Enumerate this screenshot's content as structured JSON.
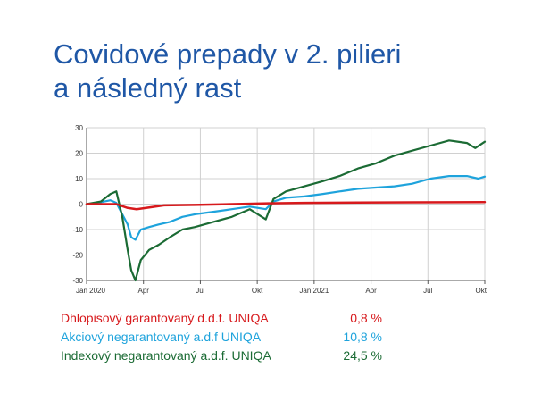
{
  "title_lines": [
    "Covidové prepady v 2. pilieri",
    "a následný rast"
  ],
  "colors": {
    "title": "#1f57a6",
    "red": "#d7191c",
    "cyan": "#1ea3dc",
    "green": "#1b6b34",
    "grid": "#d0d0d0",
    "axis": "#555555"
  },
  "chart_data": {
    "type": "line",
    "x_ticks": [
      "Jan 2020",
      "Apr",
      "Júl",
      "Okt",
      "Jan 2021",
      "Apr",
      "Júl",
      "Okt"
    ],
    "xlim": [
      "2020-01-01",
      "2021-10-31"
    ],
    "ylim": [
      -30,
      30
    ],
    "y_ticks": [
      30,
      20,
      10,
      0,
      -10,
      -20,
      -30
    ],
    "grid": true,
    "series": [
      {
        "name": "Dhlopisový garantovaný d.d.f. UNIQA",
        "color": "#d7191c",
        "points": [
          [
            "2020-01-01",
            0
          ],
          [
            "2020-02-20",
            0
          ],
          [
            "2020-03-10",
            -1.5
          ],
          [
            "2020-03-25",
            -2
          ],
          [
            "2020-04-10",
            -1.5
          ],
          [
            "2020-05-10",
            -0.5
          ],
          [
            "2020-07-01",
            -0.3
          ],
          [
            "2020-09-01",
            0
          ],
          [
            "2020-11-01",
            0.3
          ],
          [
            "2021-01-01",
            0.5
          ],
          [
            "2021-04-01",
            0.6
          ],
          [
            "2021-07-01",
            0.7
          ],
          [
            "2021-10-31",
            0.8
          ]
        ]
      },
      {
        "name": "Akciový negarantovaný a.d.f UNIQA",
        "color": "#1ea3dc",
        "points": [
          [
            "2020-01-01",
            0
          ],
          [
            "2020-01-20",
            0.5
          ],
          [
            "2020-02-10",
            1.5
          ],
          [
            "2020-02-20",
            0.5
          ],
          [
            "2020-03-01",
            -4
          ],
          [
            "2020-03-10",
            -8
          ],
          [
            "2020-03-16",
            -13
          ],
          [
            "2020-03-23",
            -14
          ],
          [
            "2020-04-01",
            -10
          ],
          [
            "2020-04-15",
            -9
          ],
          [
            "2020-05-01",
            -8
          ],
          [
            "2020-05-20",
            -7
          ],
          [
            "2020-06-10",
            -5
          ],
          [
            "2020-07-01",
            -4
          ],
          [
            "2020-08-01",
            -3
          ],
          [
            "2020-09-01",
            -2
          ],
          [
            "2020-10-01",
            -1
          ],
          [
            "2020-10-28",
            -2
          ],
          [
            "2020-11-10",
            1
          ],
          [
            "2020-12-01",
            2.5
          ],
          [
            "2021-01-01",
            3
          ],
          [
            "2021-02-01",
            4
          ],
          [
            "2021-03-01",
            5
          ],
          [
            "2021-04-01",
            6
          ],
          [
            "2021-05-01",
            6.5
          ],
          [
            "2021-06-01",
            7
          ],
          [
            "2021-07-01",
            8
          ],
          [
            "2021-08-01",
            10
          ],
          [
            "2021-09-01",
            11
          ],
          [
            "2021-10-01",
            11
          ],
          [
            "2021-10-20",
            10
          ],
          [
            "2021-10-31",
            10.8
          ]
        ]
      },
      {
        "name": "Indexový negarantovaný a.d.f. UNIQA",
        "color": "#1b6b34",
        "points": [
          [
            "2020-01-01",
            0
          ],
          [
            "2020-01-25",
            1
          ],
          [
            "2020-02-10",
            4
          ],
          [
            "2020-02-20",
            5
          ],
          [
            "2020-03-01",
            -5
          ],
          [
            "2020-03-10",
            -18
          ],
          [
            "2020-03-16",
            -26
          ],
          [
            "2020-03-23",
            -30
          ],
          [
            "2020-04-01",
            -22
          ],
          [
            "2020-04-15",
            -18
          ],
          [
            "2020-05-01",
            -16
          ],
          [
            "2020-05-20",
            -13
          ],
          [
            "2020-06-10",
            -10
          ],
          [
            "2020-07-01",
            -9
          ],
          [
            "2020-08-01",
            -7
          ],
          [
            "2020-09-01",
            -5
          ],
          [
            "2020-10-01",
            -2
          ],
          [
            "2020-10-28",
            -6
          ],
          [
            "2020-11-10",
            2
          ],
          [
            "2020-12-01",
            5
          ],
          [
            "2021-01-01",
            7
          ],
          [
            "2021-02-01",
            9
          ],
          [
            "2021-03-01",
            11
          ],
          [
            "2021-04-01",
            14
          ],
          [
            "2021-05-01",
            16
          ],
          [
            "2021-06-01",
            19
          ],
          [
            "2021-07-01",
            21
          ],
          [
            "2021-08-01",
            23
          ],
          [
            "2021-09-01",
            25
          ],
          [
            "2021-10-01",
            24
          ],
          [
            "2021-10-15",
            22
          ],
          [
            "2021-10-31",
            24.5
          ]
        ]
      }
    ]
  },
  "legend": [
    {
      "label": "Dhlopisový garantovaný d.d.f. UNIQA",
      "value": "0,8 %",
      "color": "#d7191c"
    },
    {
      "label": "Akciový negarantovaný a.d.f UNIQA",
      "value": "10,8 %",
      "color": "#1ea3dc"
    },
    {
      "label": "Indexový negarantovaný a.d.f. UNIQA",
      "value": "24,5 %",
      "color": "#1b6b34"
    }
  ]
}
